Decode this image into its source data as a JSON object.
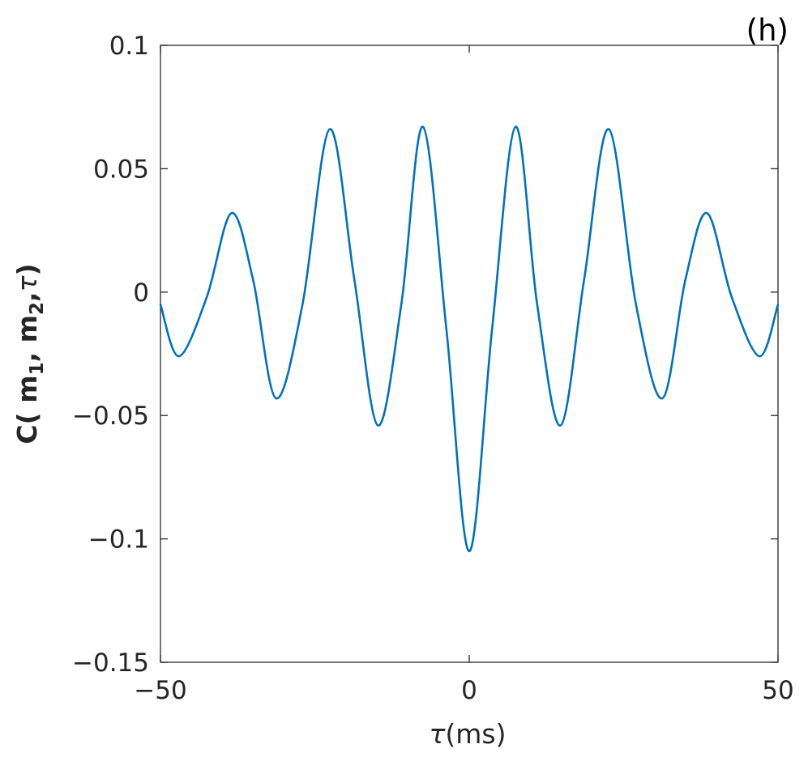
{
  "panel_label": "(h)",
  "chart_data": {
    "type": "line",
    "title": "",
    "xlabel": {
      "symbol": "τ",
      "unit": "(ms)"
    },
    "ylabel": {
      "prefix": "C( m",
      "sub1": "1",
      "mid": ", m",
      "sub2": "2",
      "sep": ",",
      "symbol": "τ",
      "suffix": ")"
    },
    "xlim": [
      -50,
      50
    ],
    "ylim": [
      -0.15,
      0.1
    ],
    "xticks": [
      -50,
      0,
      50
    ],
    "xtick_labels": [
      "−50",
      "0",
      "50"
    ],
    "yticks": [
      -0.15,
      -0.1,
      -0.05,
      0,
      0.05,
      0.1
    ],
    "ytick_labels": [
      "−0.15",
      "−0.1",
      "−0.05",
      "0",
      "0.05",
      "0.1"
    ],
    "grid": false,
    "series": [
      {
        "color": "#0072BD",
        "x": [
          -50,
          -47,
          -42.5,
          -38.5,
          -35,
          -31.3,
          -27,
          -22.6,
          -18.6,
          -14.8,
          -11,
          -7.5,
          -3.7,
          0,
          3.7,
          7.5,
          11,
          14.8,
          18.6,
          22.6,
          27,
          31.3,
          35,
          38.5,
          42.5,
          47,
          50
        ],
        "y": [
          -0.005,
          -0.026,
          -0.002,
          0.032,
          0.005,
          -0.043,
          -0.005,
          0.066,
          0.005,
          -0.054,
          -0.005,
          0.067,
          -0.015,
          -0.105,
          -0.015,
          0.067,
          -0.005,
          -0.054,
          0.005,
          0.066,
          -0.005,
          -0.043,
          0.005,
          0.032,
          -0.002,
          -0.026,
          -0.005
        ]
      }
    ]
  }
}
